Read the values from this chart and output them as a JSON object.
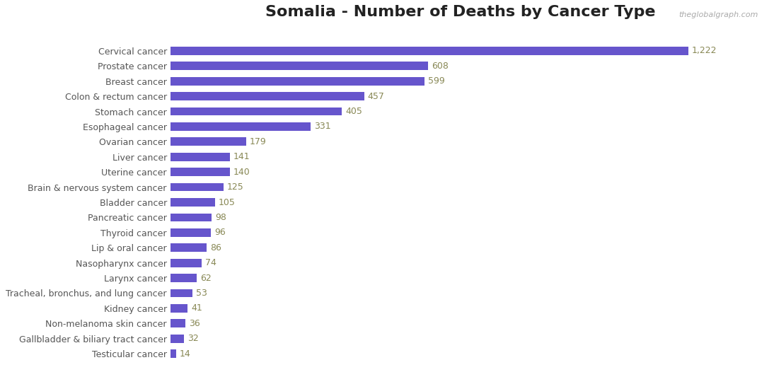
{
  "title": "Somalia - Number of Deaths by Cancer Type",
  "watermark": "theglobalgraph.com",
  "categories": [
    "Cervical cancer",
    "Prostate cancer",
    "Breast cancer",
    "Colon & rectum cancer",
    "Stomach cancer",
    "Esophageal cancer",
    "Ovarian cancer",
    "Liver cancer",
    "Uterine cancer",
    "Brain & nervous system cancer",
    "Bladder cancer",
    "Pancreatic cancer",
    "Thyroid cancer",
    "Lip & oral cancer",
    "Nasopharynx cancer",
    "Larynx cancer",
    "Tracheal, bronchus, and lung cancer",
    "Kidney cancer",
    "Non-melanoma skin cancer",
    "Gallbladder & biliary tract cancer",
    "Testicular cancer"
  ],
  "values": [
    1222,
    608,
    599,
    457,
    405,
    331,
    179,
    141,
    140,
    125,
    105,
    98,
    96,
    86,
    74,
    62,
    53,
    41,
    36,
    32,
    14
  ],
  "bar_color": "#6655cc",
  "label_color": "#888855",
  "title_color": "#222222",
  "watermark_color": "#aaaaaa",
  "background_color": "#ffffff",
  "title_fontsize": 16,
  "label_fontsize": 9,
  "value_fontsize": 9,
  "bar_height": 0.55
}
